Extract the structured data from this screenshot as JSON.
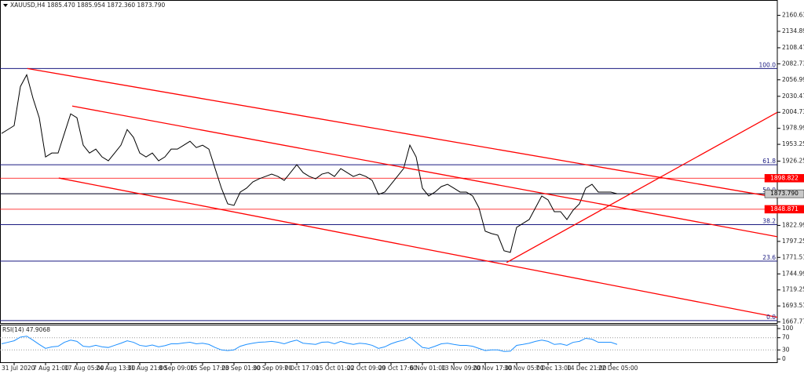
{
  "chart_data": [
    {
      "type": "line",
      "title": "XAUUSD,H4",
      "ohlc": [
        {
          "value": 1885.47,
          "label": "1885.470"
        },
        {
          "value": 1885.954,
          "label": "1885.954"
        },
        {
          "value": 1872.36,
          "label": "1872.360"
        },
        {
          "value": 1873.79,
          "label": "1873.790"
        }
      ],
      "categories": [
        null,
        null,
        "31 Jul 2020",
        null,
        null,
        null,
        null,
        "7 Aug 21:00",
        null,
        null,
        null,
        null,
        "17 Aug 05:00",
        null,
        null,
        null,
        null,
        "24 Aug 13:00",
        null,
        null,
        null,
        null,
        "31 Aug 21:00",
        null,
        null,
        null,
        null,
        "8 Sep 09:00",
        null,
        null,
        null,
        null,
        "15 Sep 17:00",
        null,
        null,
        null,
        null,
        "23 Sep 01:00",
        null,
        null,
        null,
        null,
        "30 Sep 09:00",
        null,
        null,
        null,
        null,
        "7 Oct 17:00",
        null,
        null,
        null,
        null,
        "15 Oct 01:00",
        null,
        null,
        null,
        null,
        "22 Oct 09:00",
        null,
        null,
        null,
        null,
        "29 Oct 17:00",
        null,
        null,
        null,
        null,
        "6 Nov 01:00",
        null,
        null,
        null,
        null,
        "13 Nov 09:00",
        null,
        null,
        null,
        null,
        "20 Nov 17:00",
        null,
        null,
        null,
        null,
        "30 Nov 05:00",
        null,
        null,
        null,
        null,
        "7 Dec 13:00",
        null,
        null,
        null,
        null,
        "14 Dec 21:00",
        null,
        null,
        null,
        null,
        "22 Dec 05:00",
        null
      ],
      "series": [
        {
          "name": "XAUUSD",
          "color": "#000000",
          "values": [
            1970.8,
            1977.0,
            1983.3,
            2046.2,
            2065.1,
            2027.4,
            1995.9,
            1933.0,
            1939.3,
            1939.3,
            1970.8,
            2002.2,
            1995.9,
            1951.9,
            1939.3,
            1945.6,
            1933.0,
            1926.8,
            1939.3,
            1951.9,
            1977.0,
            1964.5,
            1939.3,
            1933.0,
            1939.3,
            1926.8,
            1933.0,
            1945.6,
            1945.6,
            1951.9,
            1958.2,
            1948.1,
            1951.9,
            1945.6,
            1914.2,
            1882.8,
            1857.6,
            1855.1,
            1876.5,
            1882.8,
            1892.8,
            1897.8,
            1901.6,
            1905.4,
            1901.6,
            1895.3,
            1907.9,
            1920.5,
            1907.9,
            1901.6,
            1897.8,
            1905.4,
            1907.9,
            1901.6,
            1914.2,
            1907.9,
            1901.6,
            1905.4,
            1901.6,
            1895.3,
            1872.7,
            1876.5,
            1889.0,
            1901.6,
            1914.2,
            1951.9,
            1933.0,
            1882.8,
            1870.2,
            1876.5,
            1885.3,
            1889.0,
            1882.8,
            1876.5,
            1876.5,
            1870.2,
            1851.3,
            1813.6,
            1809.8,
            1807.3,
            1782.2,
            1779.6,
            1819.9,
            1826.2,
            1832.4,
            1851.3,
            1870.2,
            1863.9,
            1845.0,
            1845.0,
            1832.4,
            1847.5,
            1857.6,
            1882.8,
            1889.0,
            1876.5,
            1876.5,
            1876.5,
            1873.8
          ]
        }
      ],
      "ylim": [
        1666,
        2184
      ],
      "yticks": [
        {
          "value": 2160.63,
          "label": "2160.630"
        },
        {
          "value": 2134.89,
          "label": "2134.890"
        },
        {
          "value": 2108.47,
          "label": "2108.470"
        },
        {
          "value": 2082.73,
          "label": "2082.730"
        },
        {
          "value": 2056.99,
          "label": "2056.990"
        },
        {
          "value": 2030.47,
          "label": "2030.470"
        },
        {
          "value": 2004.73,
          "label": "2004.730"
        },
        {
          "value": 1978.99,
          "label": "1978.990"
        },
        {
          "value": 1953.25,
          "label": "1953.250"
        },
        {
          "value": 1926.25,
          "label": "1926.250"
        },
        {
          "value": 1822.99,
          "label": "1822.990"
        },
        {
          "value": 1797.25,
          "label": "1797.250"
        },
        {
          "value": 1771.51,
          "label": "1771.510"
        },
        {
          "value": 1744.99,
          "label": "1744.990"
        },
        {
          "value": 1719.25,
          "label": "1719.250"
        },
        {
          "value": 1693.51,
          "label": "1693.510"
        },
        {
          "value": 1667.77,
          "label": "1667.770"
        }
      ],
      "fib_levels": [
        {
          "label": "100.0",
          "price": 2075.1
        },
        {
          "label": "61.8",
          "price": 1920.5
        },
        {
          "label": "50.0",
          "price": 1873.8
        },
        {
          "label": "38.2",
          "price": 1824.2
        },
        {
          "label": "23.6",
          "price": 1765.6
        },
        {
          "label": "0.0",
          "price": 1670.0
        }
      ],
      "fib_color": "#1a1a80",
      "levels": [
        {
          "value": 1898.822,
          "label": "1898.822",
          "color": "#ff0000"
        },
        {
          "value": 1848.871,
          "label": "1848.871",
          "color": "#ff0000"
        },
        {
          "value": 1873.79,
          "label": "1873.790",
          "color": "#000000"
        }
      ],
      "trend_lines": [
        {
          "x": [
            4.1,
            123.5
          ],
          "y": [
            2075.1,
            1867.7
          ]
        },
        {
          "x": [
            11.25,
            123.5
          ],
          "y": [
            2014.8,
            1804.8
          ]
        },
        {
          "x": [
            9.1,
            123.5
          ],
          "y": [
            1899.1,
            1675.3
          ]
        },
        {
          "x": [
            80.4,
            123.5
          ],
          "y": [
            1763.3,
            2004.7
          ]
        }
      ],
      "trend_color": "#ff0000"
    },
    {
      "type": "line",
      "title": "RSI(14)",
      "last": 47.9068,
      "series": [
        {
          "name": "RSI(14)",
          "color": "#1e90ff",
          "values": [
            50,
            55,
            60,
            72,
            75,
            62,
            48,
            35,
            40,
            42,
            55,
            62,
            58,
            42,
            40,
            45,
            40,
            38,
            45,
            52,
            60,
            55,
            45,
            42,
            46,
            40,
            44,
            50,
            50,
            53,
            55,
            50,
            52,
            48,
            38,
            30,
            28,
            30,
            42,
            48,
            52,
            55,
            56,
            58,
            55,
            50,
            57,
            62,
            52,
            50,
            48,
            55,
            56,
            50,
            58,
            52,
            48,
            52,
            50,
            45,
            35,
            40,
            50,
            57,
            62,
            72,
            55,
            38,
            35,
            42,
            50,
            52,
            48,
            45,
            45,
            42,
            35,
            28,
            30,
            30,
            25,
            26,
            45,
            48,
            52,
            58,
            62,
            58,
            48,
            50,
            45,
            55,
            58,
            68,
            65,
            55,
            55,
            55,
            48
          ]
        }
      ],
      "ylim": [
        0,
        100
      ],
      "yticks": [
        0,
        30,
        70,
        100
      ]
    }
  ]
}
